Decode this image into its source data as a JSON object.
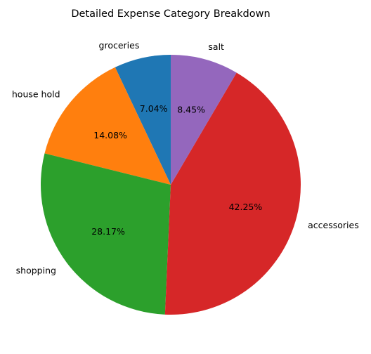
{
  "chart_data": {
    "type": "pie",
    "title": "Detailed Expense Category Breakdown",
    "categories": [
      "groceries",
      "house hold",
      "shopping",
      "accessories",
      "salt"
    ],
    "values": [
      7.04,
      14.08,
      28.17,
      42.25,
      8.45
    ],
    "percent_labels": [
      "7.04%",
      "14.08%",
      "28.17%",
      "42.25%",
      "8.45%"
    ],
    "colors": [
      "#1f77b4",
      "#ff7f0e",
      "#2ca02c",
      "#d62728",
      "#9467bd"
    ],
    "start_angle_deg": 90,
    "direction": "counterclockwise"
  }
}
